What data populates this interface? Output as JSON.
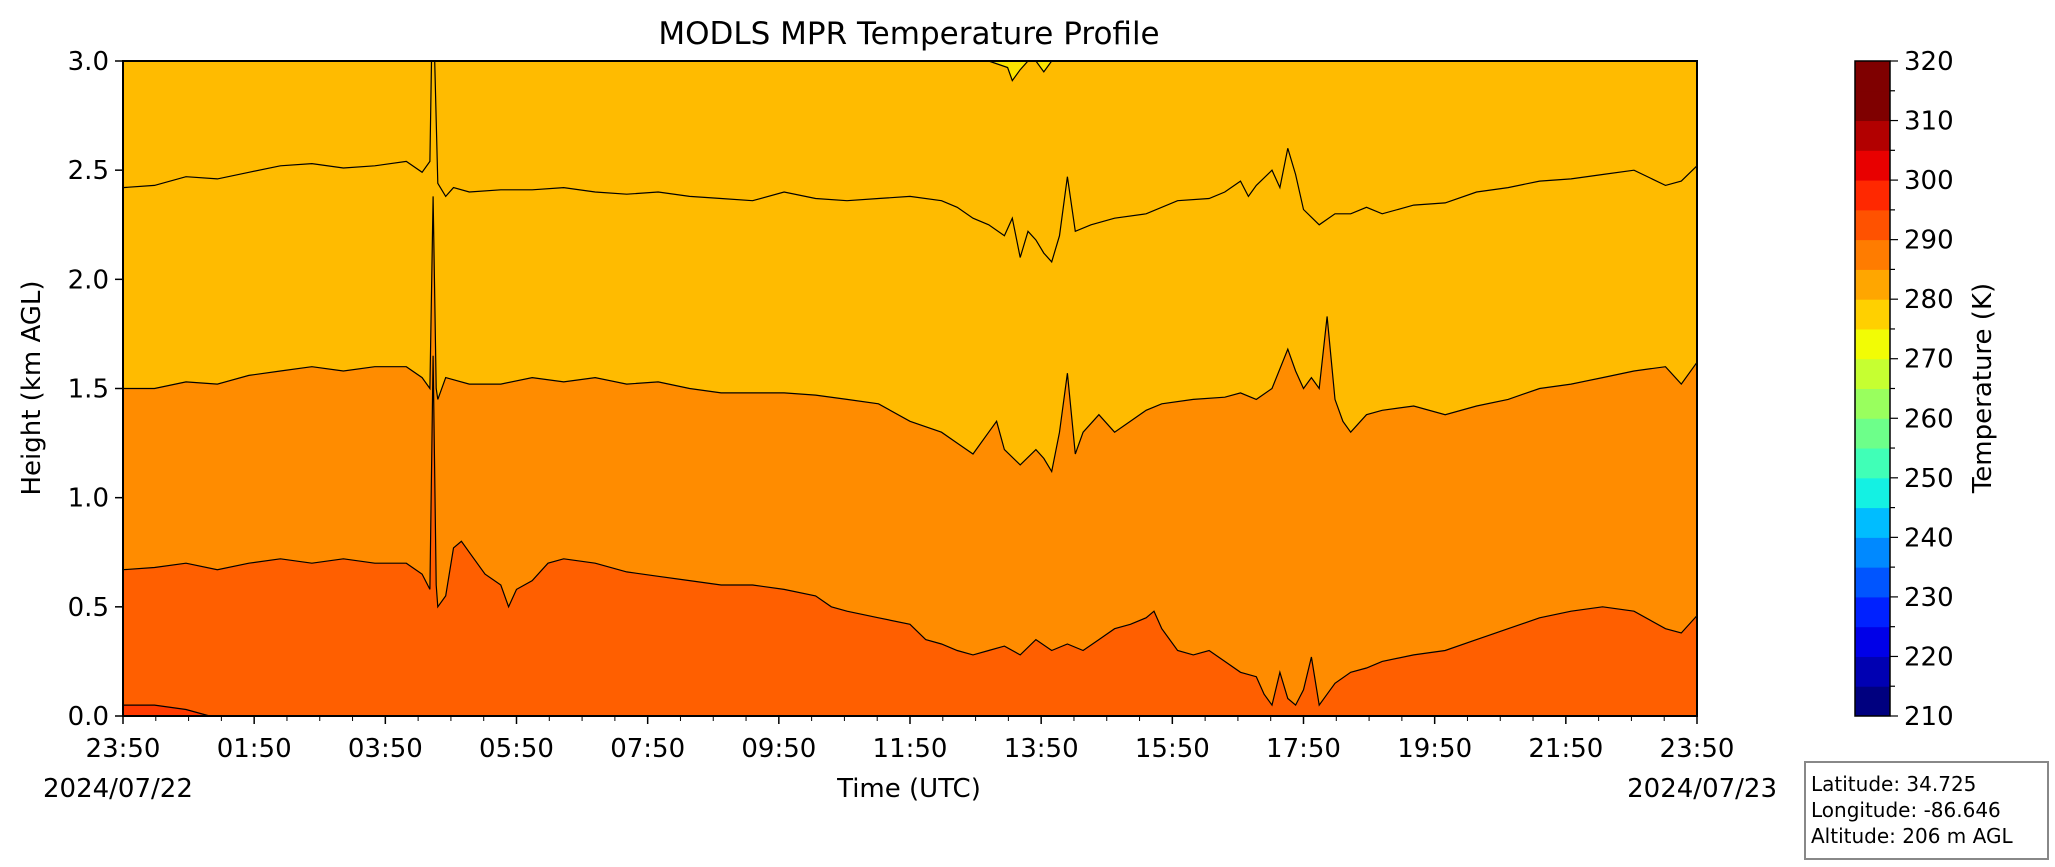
{
  "chart_data": {
    "type": "heatmap",
    "subtype": "filled-contour",
    "title": "MODLS MPR Temperature Profile",
    "xlabel": "Time (UTC)",
    "ylabel": "Height (km AGL)",
    "x_start_date": "2024/07/22",
    "x_end_date": "2024/07/23",
    "x_ticks": [
      "23:50",
      "01:50",
      "03:50",
      "05:50",
      "07:50",
      "09:50",
      "11:50",
      "13:50",
      "15:50",
      "17:50",
      "19:50",
      "21:50",
      "23:50"
    ],
    "ylim": [
      0,
      3.0
    ],
    "y_ticks": [
      "0.0",
      "0.5",
      "1.0",
      "1.5",
      "2.0",
      "2.5",
      "3.0"
    ],
    "colorbar": {
      "label": "Temperature (K)",
      "range": [
        210,
        320
      ],
      "step": 5,
      "tick_labels": [
        "210",
        "220",
        "230",
        "240",
        "250",
        "260",
        "270",
        "280",
        "290",
        "300",
        "310",
        "320"
      ],
      "colors": [
        "#00007f",
        "#0000b2",
        "#0000e8",
        "#0021ff",
        "#0055ff",
        "#0089ff",
        "#00bdff",
        "#14f1e3",
        "#40ffb7",
        "#6dff8a",
        "#99ff5e",
        "#c6ff31",
        "#f2fc05",
        "#ffd000",
        "#ffa600",
        "#ff7c00",
        "#ff5200",
        "#ff2800",
        "#e80000",
        "#b20000",
        "#7f0000",
        "#7f0000"
      ]
    },
    "contour_levels_k": [
      280,
      285,
      290,
      295,
      300
    ],
    "fill_colors": {
      "above_280": "#fbe300",
      "band_285_290": "#ffbb00",
      "band_290_295": "#ff8c00",
      "band_295_300": "#ff5f00",
      "band_300_305": "#ff3a00"
    },
    "contours": [
      {
        "level_k": 280,
        "points": [
          [
            0,
            3.0
          ],
          [
            0.33,
            3.0
          ],
          [
            0.55,
            3.0
          ],
          [
            0.562,
            2.97
          ],
          [
            0.565,
            2.91
          ],
          [
            0.57,
            2.96
          ],
          [
            0.575,
            3.0
          ],
          [
            0.58,
            3.0
          ],
          [
            0.585,
            2.95
          ],
          [
            0.59,
            3.0
          ],
          [
            1.0,
            3.0
          ]
        ]
      },
      {
        "level_k": 285,
        "points": [
          [
            0.0,
            2.42
          ],
          [
            0.02,
            2.43
          ],
          [
            0.04,
            2.47
          ],
          [
            0.06,
            2.46
          ],
          [
            0.08,
            2.49
          ],
          [
            0.1,
            2.52
          ],
          [
            0.12,
            2.53
          ],
          [
            0.14,
            2.51
          ],
          [
            0.16,
            2.52
          ],
          [
            0.18,
            2.54
          ],
          [
            0.19,
            2.49
          ],
          [
            0.195,
            2.54
          ],
          [
            0.196,
            3.0
          ],
          [
            0.198,
            3.0
          ],
          [
            0.2,
            2.44
          ],
          [
            0.205,
            2.38
          ],
          [
            0.21,
            2.42
          ],
          [
            0.22,
            2.4
          ],
          [
            0.24,
            2.41
          ],
          [
            0.26,
            2.41
          ],
          [
            0.28,
            2.42
          ],
          [
            0.3,
            2.4
          ],
          [
            0.32,
            2.39
          ],
          [
            0.34,
            2.4
          ],
          [
            0.36,
            2.38
          ],
          [
            0.38,
            2.37
          ],
          [
            0.4,
            2.36
          ],
          [
            0.42,
            2.4
          ],
          [
            0.44,
            2.37
          ],
          [
            0.46,
            2.36
          ],
          [
            0.48,
            2.37
          ],
          [
            0.5,
            2.38
          ],
          [
            0.52,
            2.36
          ],
          [
            0.53,
            2.33
          ],
          [
            0.54,
            2.28
          ],
          [
            0.55,
            2.25
          ],
          [
            0.56,
            2.2
          ],
          [
            0.565,
            2.28
          ],
          [
            0.57,
            2.1
          ],
          [
            0.575,
            2.22
          ],
          [
            0.58,
            2.18
          ],
          [
            0.585,
            2.12
          ],
          [
            0.59,
            2.08
          ],
          [
            0.595,
            2.2
          ],
          [
            0.6,
            2.47
          ],
          [
            0.605,
            2.22
          ],
          [
            0.615,
            2.25
          ],
          [
            0.63,
            2.28
          ],
          [
            0.65,
            2.3
          ],
          [
            0.67,
            2.36
          ],
          [
            0.69,
            2.37
          ],
          [
            0.7,
            2.4
          ],
          [
            0.71,
            2.45
          ],
          [
            0.715,
            2.38
          ],
          [
            0.72,
            2.43
          ],
          [
            0.73,
            2.5
          ],
          [
            0.735,
            2.42
          ],
          [
            0.74,
            2.6
          ],
          [
            0.745,
            2.48
          ],
          [
            0.75,
            2.32
          ],
          [
            0.76,
            2.25
          ],
          [
            0.77,
            2.3
          ],
          [
            0.78,
            2.3
          ],
          [
            0.79,
            2.33
          ],
          [
            0.8,
            2.3
          ],
          [
            0.82,
            2.34
          ],
          [
            0.84,
            2.35
          ],
          [
            0.86,
            2.4
          ],
          [
            0.88,
            2.42
          ],
          [
            0.9,
            2.45
          ],
          [
            0.92,
            2.46
          ],
          [
            0.94,
            2.48
          ],
          [
            0.96,
            2.5
          ],
          [
            0.98,
            2.43
          ],
          [
            0.99,
            2.45
          ],
          [
            1.0,
            2.52
          ]
        ]
      },
      {
        "level_k": 290,
        "points": [
          [
            0.0,
            1.5
          ],
          [
            0.02,
            1.5
          ],
          [
            0.04,
            1.53
          ],
          [
            0.06,
            1.52
          ],
          [
            0.08,
            1.56
          ],
          [
            0.1,
            1.58
          ],
          [
            0.12,
            1.6
          ],
          [
            0.14,
            1.58
          ],
          [
            0.16,
            1.6
          ],
          [
            0.18,
            1.6
          ],
          [
            0.19,
            1.55
          ],
          [
            0.195,
            1.5
          ],
          [
            0.197,
            2.38
          ],
          [
            0.199,
            1.5
          ],
          [
            0.2,
            1.45
          ],
          [
            0.205,
            1.55
          ],
          [
            0.22,
            1.52
          ],
          [
            0.24,
            1.52
          ],
          [
            0.26,
            1.55
          ],
          [
            0.28,
            1.53
          ],
          [
            0.3,
            1.55
          ],
          [
            0.32,
            1.52
          ],
          [
            0.34,
            1.53
          ],
          [
            0.36,
            1.5
          ],
          [
            0.38,
            1.48
          ],
          [
            0.4,
            1.48
          ],
          [
            0.42,
            1.48
          ],
          [
            0.44,
            1.47
          ],
          [
            0.46,
            1.45
          ],
          [
            0.48,
            1.43
          ],
          [
            0.5,
            1.35
          ],
          [
            0.52,
            1.3
          ],
          [
            0.53,
            1.25
          ],
          [
            0.54,
            1.2
          ],
          [
            0.55,
            1.3
          ],
          [
            0.555,
            1.35
          ],
          [
            0.56,
            1.22
          ],
          [
            0.57,
            1.15
          ],
          [
            0.58,
            1.22
          ],
          [
            0.585,
            1.18
          ],
          [
            0.59,
            1.12
          ],
          [
            0.595,
            1.3
          ],
          [
            0.6,
            1.57
          ],
          [
            0.605,
            1.2
          ],
          [
            0.61,
            1.3
          ],
          [
            0.62,
            1.38
          ],
          [
            0.63,
            1.3
          ],
          [
            0.64,
            1.35
          ],
          [
            0.65,
            1.4
          ],
          [
            0.66,
            1.43
          ],
          [
            0.68,
            1.45
          ],
          [
            0.7,
            1.46
          ],
          [
            0.71,
            1.48
          ],
          [
            0.72,
            1.45
          ],
          [
            0.73,
            1.5
          ],
          [
            0.74,
            1.68
          ],
          [
            0.745,
            1.58
          ],
          [
            0.75,
            1.5
          ],
          [
            0.755,
            1.55
          ],
          [
            0.76,
            1.5
          ],
          [
            0.765,
            1.83
          ],
          [
            0.77,
            1.45
          ],
          [
            0.775,
            1.35
          ],
          [
            0.78,
            1.3
          ],
          [
            0.79,
            1.38
          ],
          [
            0.8,
            1.4
          ],
          [
            0.82,
            1.42
          ],
          [
            0.84,
            1.38
          ],
          [
            0.86,
            1.42
          ],
          [
            0.88,
            1.45
          ],
          [
            0.9,
            1.5
          ],
          [
            0.92,
            1.52
          ],
          [
            0.94,
            1.55
          ],
          [
            0.96,
            1.58
          ],
          [
            0.98,
            1.6
          ],
          [
            0.99,
            1.52
          ],
          [
            1.0,
            1.62
          ]
        ]
      },
      {
        "level_k": 295,
        "points": [
          [
            0.0,
            0.67
          ],
          [
            0.02,
            0.68
          ],
          [
            0.04,
            0.7
          ],
          [
            0.06,
            0.67
          ],
          [
            0.08,
            0.7
          ],
          [
            0.1,
            0.72
          ],
          [
            0.12,
            0.7
          ],
          [
            0.14,
            0.72
          ],
          [
            0.16,
            0.7
          ],
          [
            0.18,
            0.7
          ],
          [
            0.19,
            0.65
          ],
          [
            0.195,
            0.58
          ],
          [
            0.197,
            1.65
          ],
          [
            0.199,
            0.6
          ],
          [
            0.2,
            0.5
          ],
          [
            0.205,
            0.55
          ],
          [
            0.21,
            0.77
          ],
          [
            0.215,
            0.8
          ],
          [
            0.22,
            0.75
          ],
          [
            0.23,
            0.65
          ],
          [
            0.24,
            0.6
          ],
          [
            0.245,
            0.5
          ],
          [
            0.25,
            0.58
          ],
          [
            0.26,
            0.62
          ],
          [
            0.27,
            0.7
          ],
          [
            0.28,
            0.72
          ],
          [
            0.3,
            0.7
          ],
          [
            0.32,
            0.66
          ],
          [
            0.34,
            0.64
          ],
          [
            0.36,
            0.62
          ],
          [
            0.38,
            0.6
          ],
          [
            0.4,
            0.6
          ],
          [
            0.42,
            0.58
          ],
          [
            0.44,
            0.55
          ],
          [
            0.45,
            0.5
          ],
          [
            0.46,
            0.48
          ],
          [
            0.48,
            0.45
          ],
          [
            0.5,
            0.42
          ],
          [
            0.51,
            0.35
          ],
          [
            0.52,
            0.33
          ],
          [
            0.53,
            0.3
          ],
          [
            0.54,
            0.28
          ],
          [
            0.55,
            0.3
          ],
          [
            0.56,
            0.32
          ],
          [
            0.57,
            0.28
          ],
          [
            0.58,
            0.35
          ],
          [
            0.59,
            0.3
          ],
          [
            0.6,
            0.33
          ],
          [
            0.61,
            0.3
          ],
          [
            0.62,
            0.35
          ],
          [
            0.63,
            0.4
          ],
          [
            0.64,
            0.42
          ],
          [
            0.65,
            0.45
          ],
          [
            0.655,
            0.48
          ],
          [
            0.66,
            0.4
          ],
          [
            0.67,
            0.3
          ],
          [
            0.68,
            0.28
          ],
          [
            0.69,
            0.3
          ],
          [
            0.7,
            0.25
          ],
          [
            0.71,
            0.2
          ],
          [
            0.72,
            0.18
          ],
          [
            0.725,
            0.1
          ],
          [
            0.73,
            0.05
          ],
          [
            0.735,
            0.2
          ],
          [
            0.74,
            0.08
          ],
          [
            0.745,
            0.05
          ],
          [
            0.75,
            0.12
          ],
          [
            0.755,
            0.27
          ],
          [
            0.76,
            0.05
          ],
          [
            0.765,
            0.1
          ],
          [
            0.77,
            0.15
          ],
          [
            0.78,
            0.2
          ],
          [
            0.79,
            0.22
          ],
          [
            0.8,
            0.25
          ],
          [
            0.82,
            0.28
          ],
          [
            0.84,
            0.3
          ],
          [
            0.86,
            0.35
          ],
          [
            0.88,
            0.4
          ],
          [
            0.9,
            0.45
          ],
          [
            0.92,
            0.48
          ],
          [
            0.94,
            0.5
          ],
          [
            0.96,
            0.48
          ],
          [
            0.98,
            0.4
          ],
          [
            0.99,
            0.38
          ],
          [
            1.0,
            0.46
          ]
        ]
      },
      {
        "level_k": 300,
        "points": [
          [
            0.0,
            0.05
          ],
          [
            0.02,
            0.05
          ],
          [
            0.04,
            0.03
          ],
          [
            0.055,
            0.0
          ]
        ]
      }
    ],
    "info_box": {
      "latitude": "Latitude: 34.725",
      "longitude": "Longitude: -86.646",
      "altitude": "Altitude: 206 m AGL"
    }
  }
}
